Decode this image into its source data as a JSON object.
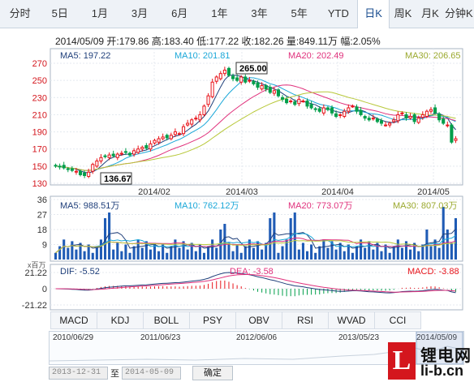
{
  "tabs": [
    "分时",
    "5日",
    "1月",
    "3月",
    "6月",
    "1年",
    "3年",
    "5年",
    "YTD",
    "日K",
    "周K",
    "月K",
    "分钟K"
  ],
  "active_tab": "日K",
  "info": "2014/05/09 开:179.86 高:183.40 低:177.22 收:182.26 量:849.11万 幅:2.05%",
  "price_panel": {
    "ma5": "MA5: 197.22",
    "ma10": "MA10: 201.81",
    "ma20": "MA20: 202.49",
    "ma30": "MA30: 206.65",
    "y_ticks": [
      "270",
      "250",
      "230",
      "210",
      "190",
      "170",
      "150",
      "130"
    ],
    "x_ticks": [
      "2014/02",
      "2014/03",
      "2014/04",
      "2014/05"
    ],
    "high_label": "265.00",
    "low_label": "136.67"
  },
  "volume_panel": {
    "ma5": "MA5: 988.51万",
    "ma10": "MA10: 762.12万",
    "ma20": "MA20: 773.07万",
    "ma30": "MA30: 807.03万",
    "y_ticks": [
      "36",
      "27",
      "18",
      "9"
    ],
    "unit": "x百万"
  },
  "macd_panel": {
    "dif": "DIF: -5.52",
    "dea": "DEA: -3.58",
    "macd": "MACD: -3.88",
    "y_ticks": [
      "21.22",
      "0",
      "-21.22"
    ]
  },
  "indicator_tabs": [
    "MACD",
    "KDJ",
    "BOLL",
    "PSY",
    "OBV",
    "RSI",
    "WVAD",
    "CCI"
  ],
  "active_indicator": "MACD",
  "timeline_labels": [
    "2010/06/29",
    "2011/06/23",
    "2012/06/06",
    "2013/05/23",
    "2014/05/09"
  ],
  "date_range": {
    "from": "2013-12-31",
    "sep": "至",
    "to": "2014-05-09",
    "confirm": "确定"
  },
  "logo": {
    "letter": "L",
    "cn": "锂电网",
    "en": "li-b.cn"
  },
  "colors": {
    "up": "#e8141b",
    "down": "#009e4a",
    "ma5": "#1f3f7a",
    "ma10": "#1aa7d8",
    "ma20": "#e0317c",
    "ma30": "#b8c83a",
    "volume": "#1f5bb5"
  }
}
